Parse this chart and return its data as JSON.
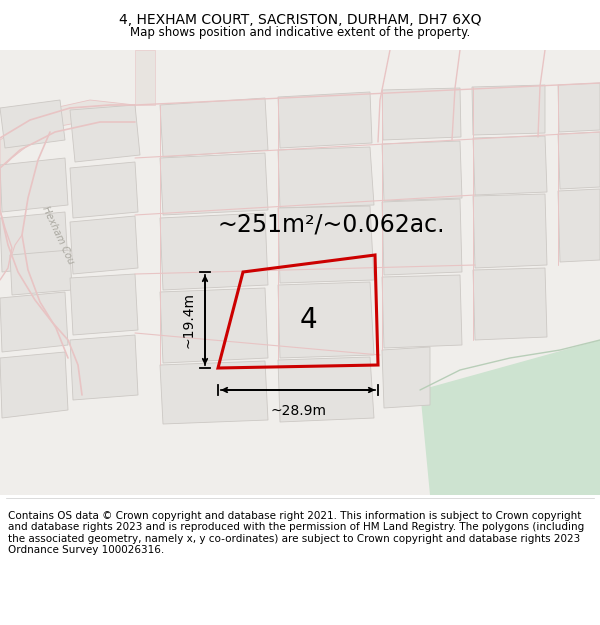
{
  "title": "4, HEXHAM COURT, SACRISTON, DURHAM, DH7 6XQ",
  "subtitle": "Map shows position and indicative extent of the property.",
  "area_text": "~251m²/~0.062ac.",
  "width_label": "~28.9m",
  "height_label": "~19.4m",
  "number_label": "4",
  "footnote": "Contains OS data © Crown copyright and database right 2021. This information is subject to Crown copyright and database rights 2023 and is reproduced with the permission of HM Land Registry. The polygons (including the associated geometry, namely x, y co-ordinates) are subject to Crown copyright and database rights 2023 Ordnance Survey 100026316.",
  "map_bg": "#f0eeeb",
  "road_color": "#e8c4c4",
  "plot_outline_color": "#cc0000",
  "water_color": "#cde3d0",
  "building_fill": "#e4e2df",
  "building_outline": "#ccc8c4",
  "street_label": "Hexham Cou",
  "title_fontsize": 10,
  "subtitle_fontsize": 8.5,
  "area_fontsize": 17,
  "dim_fontsize": 10,
  "number_fontsize": 20,
  "footnote_fontsize": 7.5
}
